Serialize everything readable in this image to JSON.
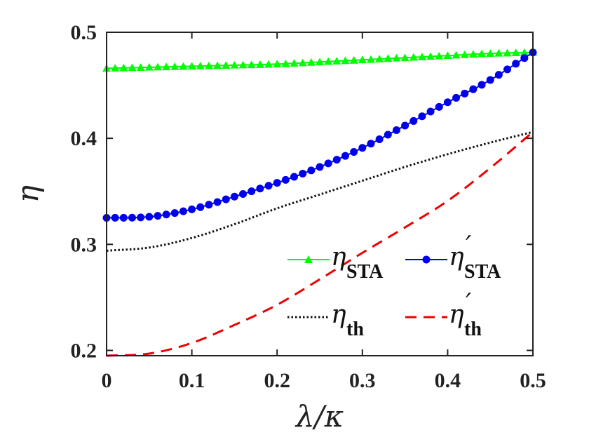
{
  "chart_data": {
    "type": "line",
    "xlabel": "λ/κ",
    "ylabel": "η",
    "xlim": [
      0,
      0.5
    ],
    "ylim": [
      0.195,
      0.5
    ],
    "xticks": [
      0,
      0.1,
      0.2,
      0.3,
      0.4,
      0.5
    ],
    "xtick_labels": [
      "0",
      "0.1",
      "0.2",
      "0.3",
      "0.4",
      "0.5"
    ],
    "yticks": [
      0.2,
      0.3,
      0.4,
      0.5
    ],
    "ytick_labels": [
      "0.2",
      "0.3",
      "0.4",
      "0.5"
    ],
    "legend_position": "bottom-right",
    "series": [
      {
        "name": "η_STA",
        "symbol": "η",
        "prime": "",
        "subscript": "STA",
        "color": "#00ff00",
        "style": "solid",
        "marker": "triangle",
        "x": [
          0,
          0.05,
          0.1,
          0.15,
          0.2,
          0.25,
          0.3,
          0.35,
          0.4,
          0.45,
          0.5
        ],
        "values": [
          0.466,
          0.467,
          0.468,
          0.469,
          0.47,
          0.472,
          0.474,
          0.476,
          0.478,
          0.48,
          0.481
        ]
      },
      {
        "name": "η'_STA",
        "symbol": "η",
        "prime": "′",
        "subscript": "STA",
        "color": "#0000ee",
        "style": "solid",
        "marker": "circle",
        "x": [
          0,
          0.05,
          0.1,
          0.15,
          0.2,
          0.25,
          0.3,
          0.35,
          0.4,
          0.45,
          0.5
        ],
        "values": [
          0.325,
          0.326,
          0.333,
          0.345,
          0.358,
          0.373,
          0.391,
          0.412,
          0.434,
          0.455,
          0.481
        ]
      },
      {
        "name": "η_th",
        "symbol": "η",
        "prime": "",
        "subscript": "th",
        "color": "#111111",
        "style": "dotted",
        "marker": "none",
        "x": [
          0,
          0.05,
          0.1,
          0.15,
          0.2,
          0.25,
          0.3,
          0.35,
          0.4,
          0.45,
          0.5
        ],
        "values": [
          0.294,
          0.297,
          0.306,
          0.319,
          0.334,
          0.347,
          0.36,
          0.373,
          0.385,
          0.396,
          0.406
        ]
      },
      {
        "name": "η'_th",
        "symbol": "η",
        "prime": "′",
        "subscript": "th",
        "color": "#ee0000",
        "style": "dashed",
        "marker": "none",
        "x": [
          0,
          0.05,
          0.1,
          0.15,
          0.2,
          0.25,
          0.3,
          0.35,
          0.4,
          0.45,
          0.5
        ],
        "values": [
          0.195,
          0.197,
          0.207,
          0.224,
          0.243,
          0.267,
          0.292,
          0.316,
          0.341,
          0.372,
          0.406
        ]
      }
    ]
  }
}
